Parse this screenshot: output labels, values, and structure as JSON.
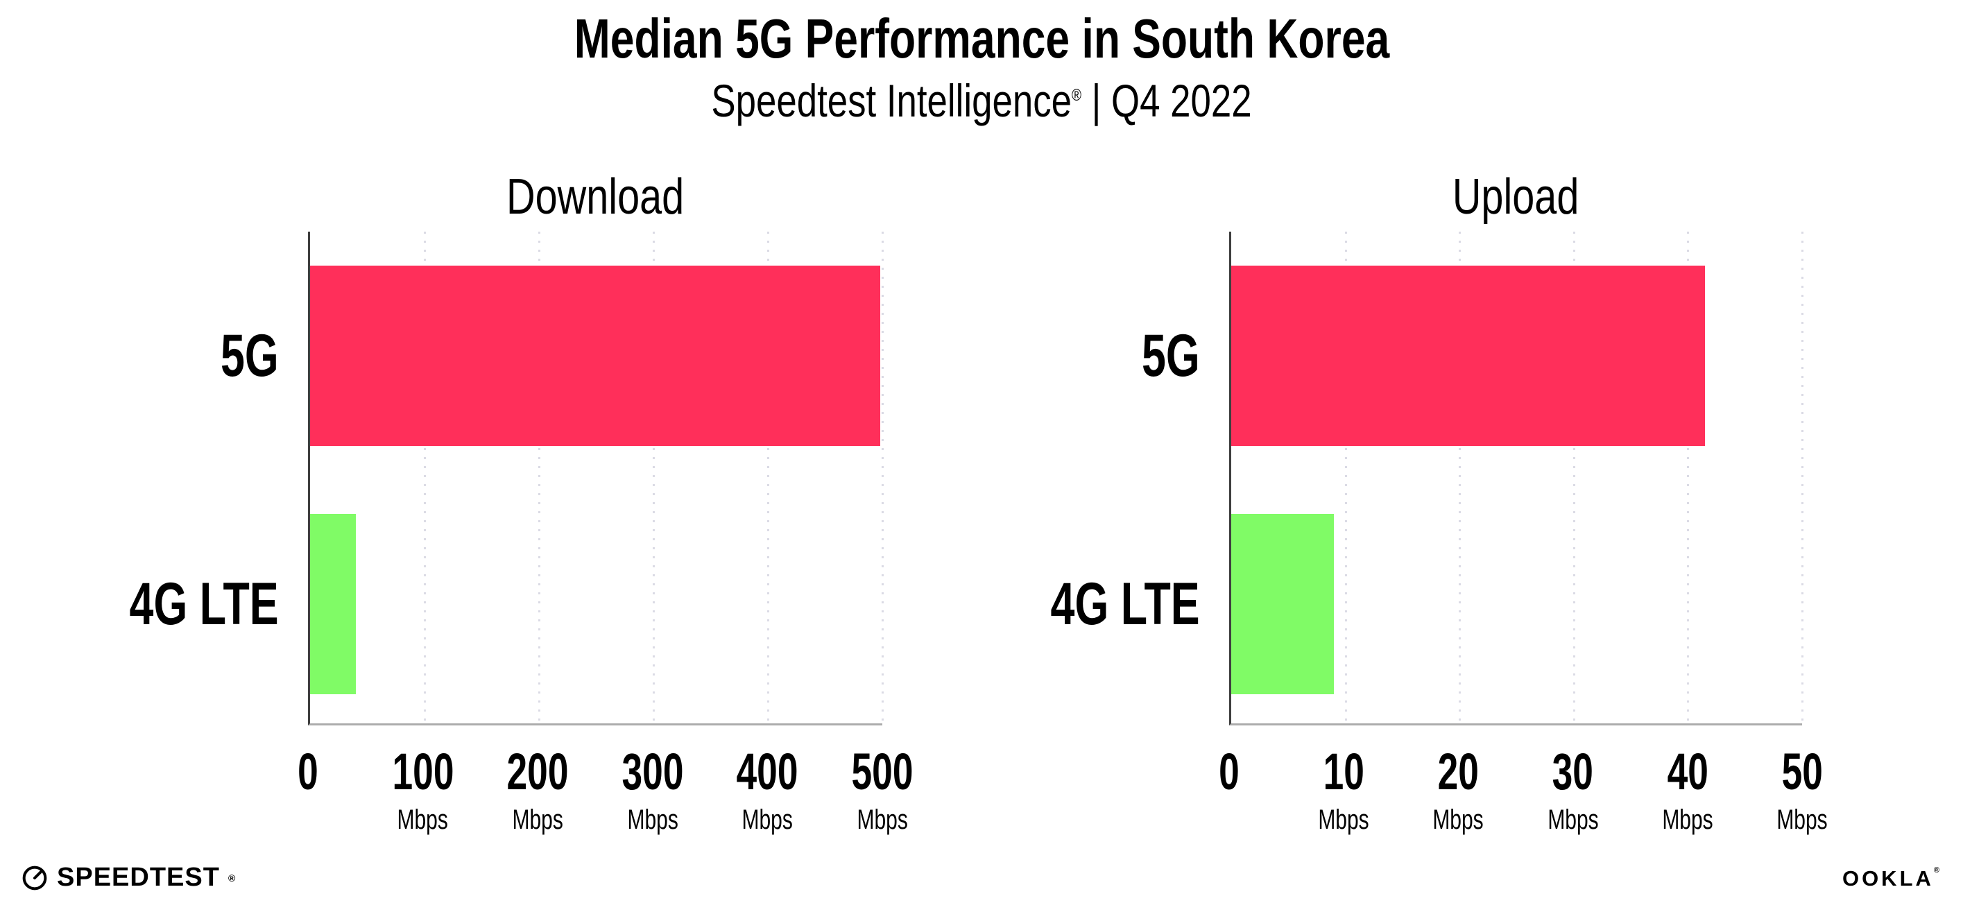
{
  "header": {
    "title": "Median 5G Performance in South Korea",
    "subtitle_brand": "Speedtest Intelligence",
    "subtitle_registered": "®",
    "subtitle_suffix": " | Q4 2022"
  },
  "chart_data": [
    {
      "type": "bar",
      "orientation": "horizontal",
      "title": "Download",
      "categories": [
        "5G",
        "4G LTE"
      ],
      "values": [
        498,
        40
      ],
      "unit": "Mbps",
      "xlim": [
        0,
        500
      ],
      "xticks": [
        0,
        100,
        200,
        300,
        400,
        500
      ],
      "bar_colors": [
        "#FF2F5A",
        "#80FB66"
      ],
      "grid": "vertical-dotted",
      "legend": "none"
    },
    {
      "type": "bar",
      "orientation": "horizontal",
      "title": "Upload",
      "categories": [
        "5G",
        "4G LTE"
      ],
      "values": [
        41.5,
        9
      ],
      "unit": "Mbps",
      "xlim": [
        0,
        50
      ],
      "xticks": [
        0,
        10,
        20,
        30,
        40,
        50
      ],
      "bar_colors": [
        "#FF2F5A",
        "#80FB66"
      ],
      "grid": "vertical-dotted",
      "legend": "none"
    }
  ],
  "colors": {
    "pink": "#FF2F5A",
    "green": "#80FB66",
    "grid": "#DBDBE5",
    "axisline": "#3F3F3F",
    "baseline": "#ACACAC",
    "text": "#000000"
  },
  "footer": {
    "speedtest_label": "SPEEDTEST",
    "speedtest_mark": "®",
    "speedtest_icon": "gauge-icon",
    "ookla_label": "OOKLA",
    "ookla_mark": "®"
  }
}
